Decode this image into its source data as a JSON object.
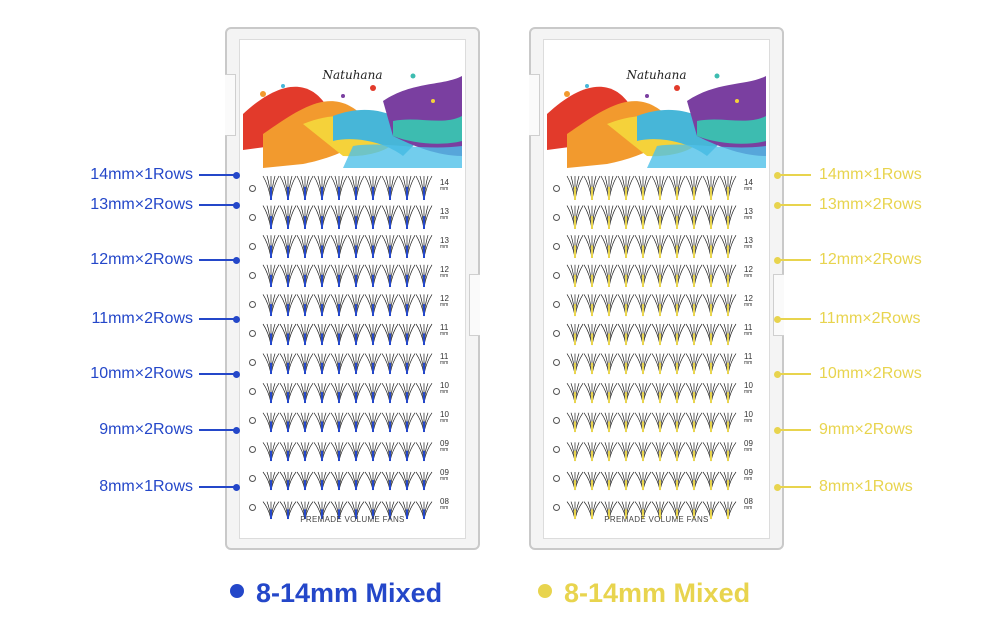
{
  "colors": {
    "blue": "#2447c9",
    "yellow": "#e8d44e"
  },
  "trays": [
    {
      "name": "blue",
      "brand": "Natuhana",
      "footer": "PREMADE VOLUME FANS",
      "fan_color": "#2447c9",
      "length_labels": [
        "14",
        "13",
        "13",
        "12",
        "12",
        "11",
        "11",
        "10",
        "10",
        "09",
        "09",
        "08"
      ],
      "length_unit": "mm"
    },
    {
      "name": "yellow",
      "brand": "Natuhana",
      "footer": "PREMADE VOLUME FANS",
      "fan_color": "#e8d44e",
      "length_labels": [
        "14",
        "13",
        "13",
        "12",
        "12",
        "11",
        "11",
        "10",
        "10",
        "09",
        "09",
        "08"
      ],
      "length_unit": "mm"
    }
  ],
  "left_callouts": [
    "14mm×1Rows",
    "13mm×2Rows",
    "12mm×2Rows",
    "11mm×2Rows",
    "10mm×2Rows",
    "9mm×2Rows",
    "8mm×1Rows"
  ],
  "right_callouts": [
    "14mm×1Rows",
    "13mm×2Rows",
    "12mm×2Rows",
    "11mm×2Rows",
    "10mm×2Rows",
    "9mm×2Rows",
    "8mm×1Rows"
  ],
  "legend": [
    {
      "label": "8-14mm Mixed",
      "color": "#2447c9"
    },
    {
      "label": "8-14mm Mixed",
      "color": "#e8d44e"
    }
  ]
}
